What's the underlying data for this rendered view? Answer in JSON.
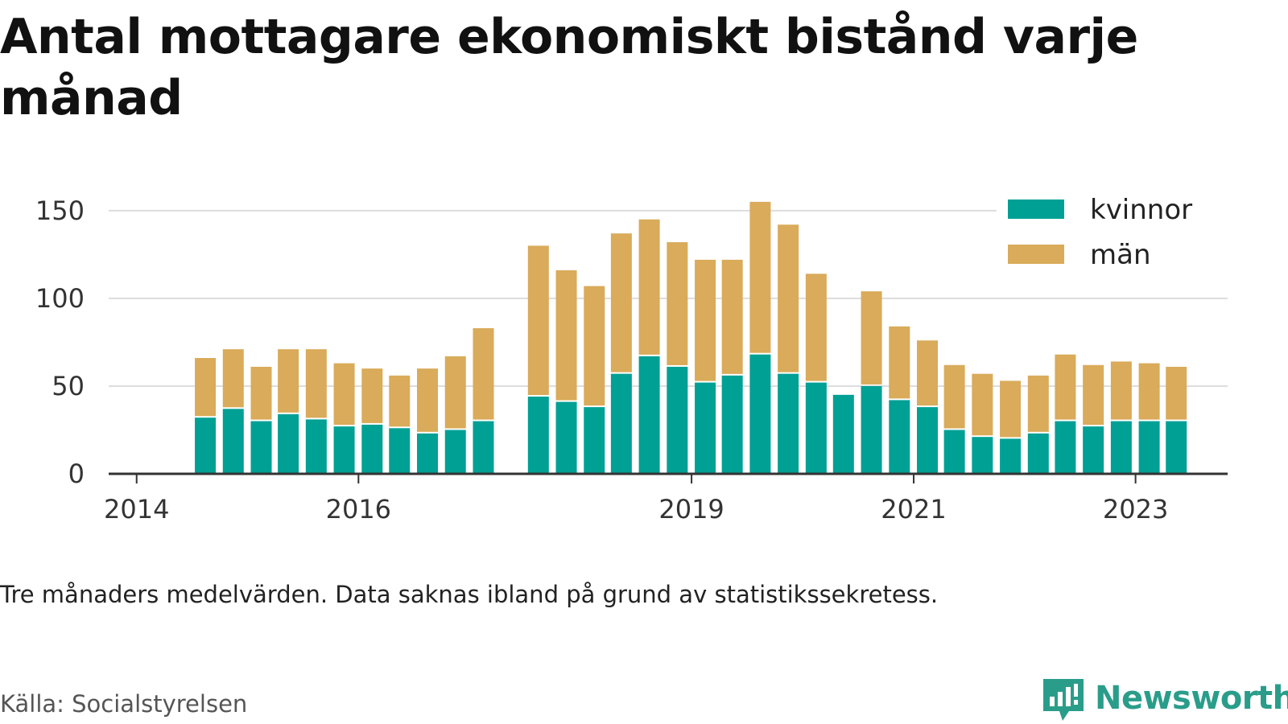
{
  "title": "Antal mottagare ekonomiskt bistånd varje månad",
  "note": "Tre månaders medelvärden. Data saknas ibland på grund av statistikssekretess.",
  "source": "Källa: Socialstyrelsen",
  "brand": {
    "name": "Newsworthy",
    "icon": "bar-chart-bubble-icon"
  },
  "colors": {
    "kvinnor": "#00a094",
    "man": "#d9ab5a",
    "grid": "#dddddd",
    "axis": "#333333"
  },
  "chart_data": {
    "type": "bar",
    "stacked": true,
    "x_axis": {
      "type": "date",
      "range": [
        "2013-10-01",
        "2023-10-31"
      ],
      "ticks": [
        "2014",
        "2016",
        "2019",
        "2021",
        "2023"
      ]
    },
    "y_axis": {
      "range": [
        0,
        160
      ],
      "ticks": [
        0,
        50,
        100,
        150
      ]
    },
    "grid": true,
    "legend": {
      "position": "top-right",
      "entries": [
        "kvinnor",
        "män"
      ]
    },
    "series": [
      {
        "name": "kvinnor",
        "color": "#00a094",
        "points": [
          {
            "date": "2014-08-15",
            "value": 32
          },
          {
            "date": "2014-11-15",
            "value": 37
          },
          {
            "date": "2015-02-15",
            "value": 30
          },
          {
            "date": "2015-05-15",
            "value": 34
          },
          {
            "date": "2015-08-15",
            "value": 31
          },
          {
            "date": "2015-11-15",
            "value": 27
          },
          {
            "date": "2016-02-15",
            "value": 28
          },
          {
            "date": "2016-05-15",
            "value": 26
          },
          {
            "date": "2016-08-15",
            "value": 23
          },
          {
            "date": "2016-11-15",
            "value": 25
          },
          {
            "date": "2017-02-15",
            "value": 30
          },
          {
            "date": "2017-08-15",
            "value": 44
          },
          {
            "date": "2017-11-15",
            "value": 41
          },
          {
            "date": "2018-02-15",
            "value": 38
          },
          {
            "date": "2018-05-15",
            "value": 57
          },
          {
            "date": "2018-08-15",
            "value": 67
          },
          {
            "date": "2018-11-15",
            "value": 61
          },
          {
            "date": "2019-02-15",
            "value": 52
          },
          {
            "date": "2019-05-15",
            "value": 56
          },
          {
            "date": "2019-08-15",
            "value": 68
          },
          {
            "date": "2019-11-15",
            "value": 57
          },
          {
            "date": "2020-02-15",
            "value": 52
          },
          {
            "date": "2020-05-15",
            "value": 45
          },
          {
            "date": "2020-08-15",
            "value": 50
          },
          {
            "date": "2020-11-15",
            "value": 42
          },
          {
            "date": "2021-02-15",
            "value": 38
          },
          {
            "date": "2021-05-15",
            "value": 25
          },
          {
            "date": "2021-08-15",
            "value": 21
          },
          {
            "date": "2021-11-15",
            "value": 20
          },
          {
            "date": "2022-02-15",
            "value": 23
          },
          {
            "date": "2022-05-15",
            "value": 30
          },
          {
            "date": "2022-08-15",
            "value": 27
          },
          {
            "date": "2022-11-15",
            "value": 30
          },
          {
            "date": "2023-02-15",
            "value": 30
          },
          {
            "date": "2023-05-15",
            "value": 30
          }
        ]
      },
      {
        "name": "män",
        "color": "#d9ab5a",
        "points": [
          {
            "date": "2014-08-15",
            "value": 34
          },
          {
            "date": "2014-11-15",
            "value": 34
          },
          {
            "date": "2015-02-15",
            "value": 31
          },
          {
            "date": "2015-05-15",
            "value": 37
          },
          {
            "date": "2015-08-15",
            "value": 40
          },
          {
            "date": "2015-11-15",
            "value": 36
          },
          {
            "date": "2016-02-15",
            "value": 32
          },
          {
            "date": "2016-05-15",
            "value": 30
          },
          {
            "date": "2016-08-15",
            "value": 37
          },
          {
            "date": "2016-11-15",
            "value": 42
          },
          {
            "date": "2017-02-15",
            "value": 53
          },
          {
            "date": "2017-08-15",
            "value": 86
          },
          {
            "date": "2017-11-15",
            "value": 75
          },
          {
            "date": "2018-02-15",
            "value": 69
          },
          {
            "date": "2018-05-15",
            "value": 80
          },
          {
            "date": "2018-08-15",
            "value": 78
          },
          {
            "date": "2018-11-15",
            "value": 71
          },
          {
            "date": "2019-02-15",
            "value": 70
          },
          {
            "date": "2019-05-15",
            "value": 66
          },
          {
            "date": "2019-08-15",
            "value": 87
          },
          {
            "date": "2019-11-15",
            "value": 85
          },
          {
            "date": "2020-02-15",
            "value": 62
          },
          {
            "date": "2020-05-15",
            "value": null
          },
          {
            "date": "2020-08-15",
            "value": 54
          },
          {
            "date": "2020-11-15",
            "value": 42
          },
          {
            "date": "2021-02-15",
            "value": 38
          },
          {
            "date": "2021-05-15",
            "value": 37
          },
          {
            "date": "2021-08-15",
            "value": 36
          },
          {
            "date": "2021-11-15",
            "value": 33
          },
          {
            "date": "2022-02-15",
            "value": 33
          },
          {
            "date": "2022-05-15",
            "value": 38
          },
          {
            "date": "2022-08-15",
            "value": 35
          },
          {
            "date": "2022-11-15",
            "value": 34
          },
          {
            "date": "2023-02-15",
            "value": 33
          },
          {
            "date": "2023-05-15",
            "value": 31
          }
        ]
      }
    ]
  }
}
